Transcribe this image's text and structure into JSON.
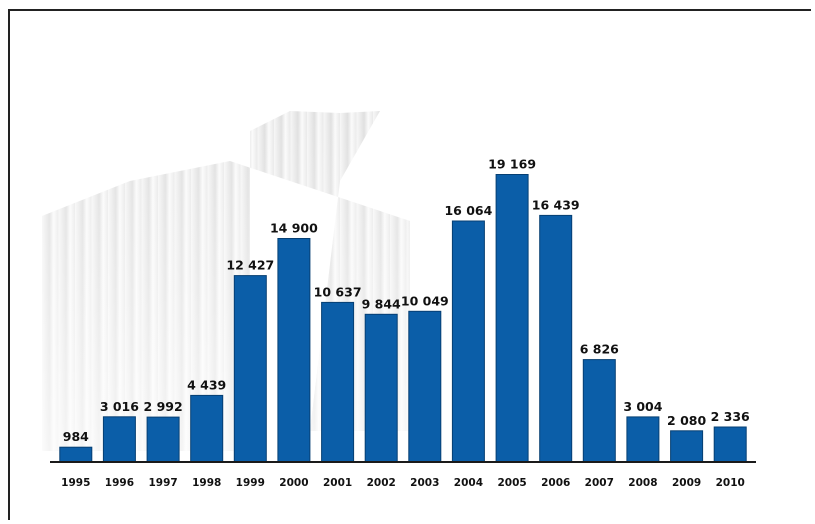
{
  "chart_data": {
    "type": "bar",
    "categories": [
      "1995",
      "1996",
      "1997",
      "1998",
      "1999",
      "2000",
      "2001",
      "2002",
      "2003",
      "2004",
      "2005",
      "2006",
      "2007",
      "2008",
      "2009",
      "2010"
    ],
    "values": [
      984,
      3016,
      2992,
      4439,
      12427,
      14900,
      10637,
      9844,
      10049,
      16064,
      19169,
      16439,
      6826,
      3004,
      2080,
      2336
    ],
    "value_labels": [
      "984",
      "3 016",
      "2 992",
      "4 439",
      "12 427",
      "14 900",
      "10 637",
      "9 844",
      "10 049",
      "16 064",
      "19 169",
      "16 439",
      "6 826",
      "3 004",
      "2 080",
      "2 336"
    ],
    "title": "",
    "xlabel": "",
    "ylabel": "",
    "ylim": [
      0,
      20000
    ],
    "grid": false,
    "legend": "none",
    "colors": {
      "bar": "#0b5ea8",
      "bar_edge": "#063f73",
      "baseline": "#1a1a1a",
      "text": "#111111"
    }
  }
}
